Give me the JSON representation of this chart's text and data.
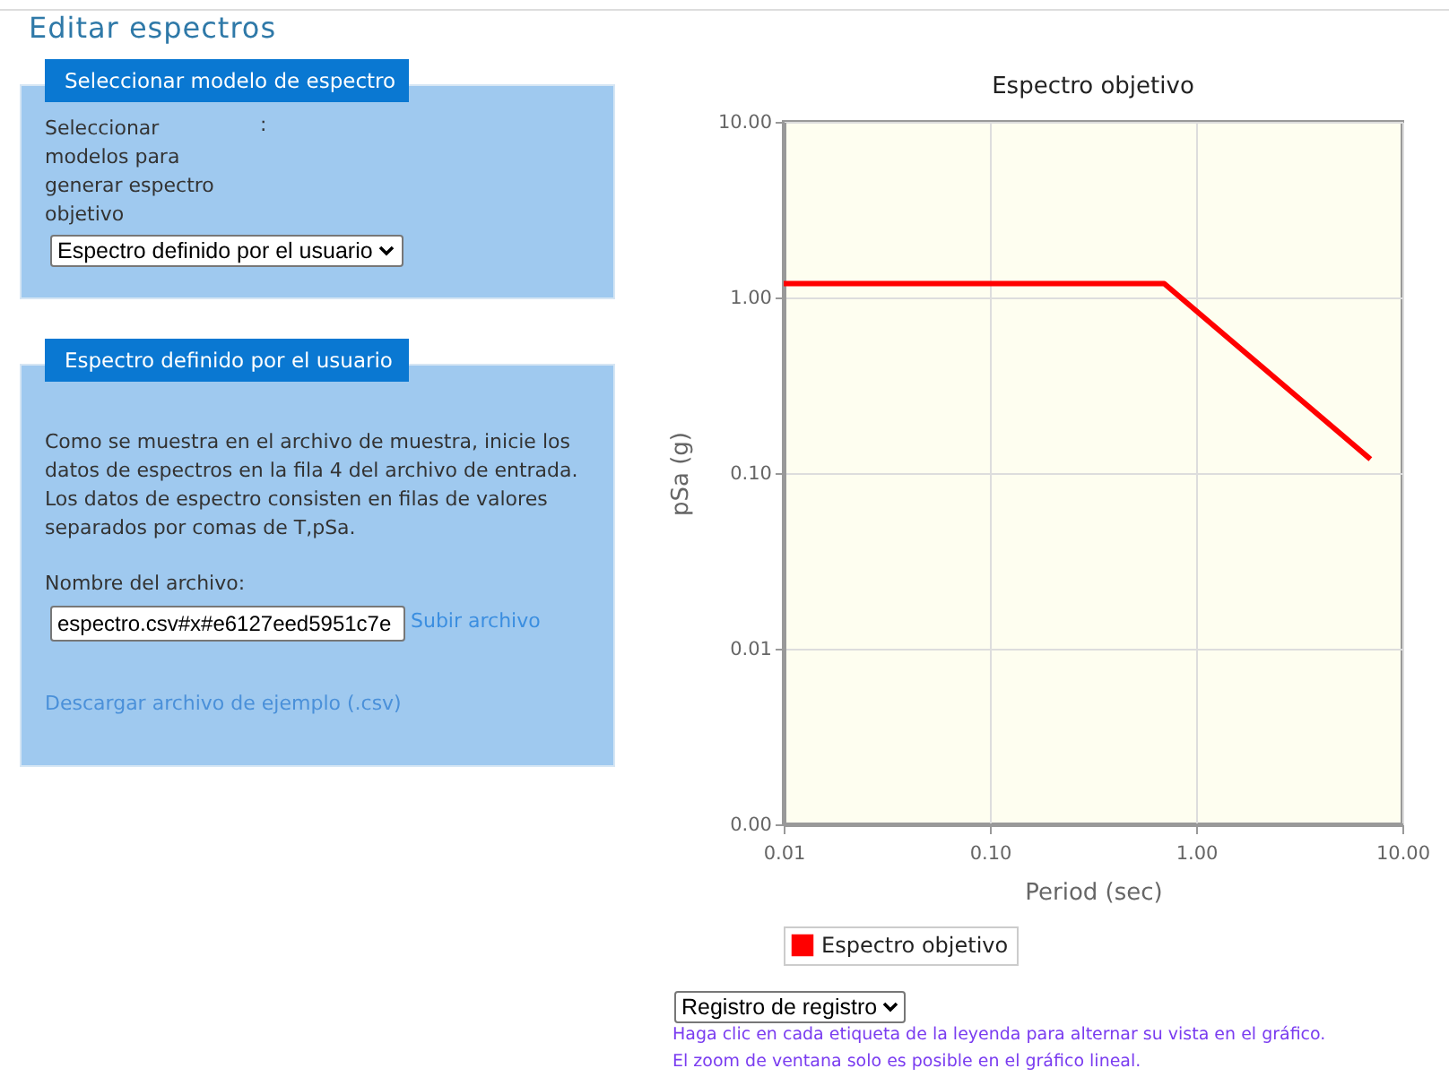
{
  "chart_data": {
    "type": "line",
    "title": "Espectro objetivo",
    "xlabel": "Period (sec)",
    "ylabel": "pSa (g)",
    "x": [
      0.01,
      0.7,
      7
    ],
    "series": [
      {
        "name": "Espectro objetivo",
        "color": "#ff0000",
        "values": [
          1.2,
          1.2,
          0.12
        ]
      }
    ],
    "log": "xy",
    "grid": true,
    "legend": "bottom",
    "xlim": [
      0.01,
      10
    ],
    "ylim": [
      0.001,
      10
    ],
    "xticks": [
      {
        "value": 0.01,
        "label": "0.01"
      },
      {
        "value": 0.1,
        "label": "0.10"
      },
      {
        "value": 1,
        "label": "1.00"
      },
      {
        "value": 10,
        "label": "10.00"
      }
    ],
    "yticks": [
      {
        "value": 0.001,
        "label": "0.00"
      },
      {
        "value": 0.01,
        "label": "0.01"
      },
      {
        "value": 0.1,
        "label": "0.10"
      },
      {
        "value": 1,
        "label": "1.00"
      },
      {
        "value": 10,
        "label": "10.00"
      }
    ],
    "annotations": [
      "Editar espectros",
      "Seleccionar modelo de espectro",
      "Seleccionar modelos para generar espectro objetivo",
      ":",
      "Espectro definido por el usuario",
      "Espectro definido por el usuario",
      "Como se muestra en el archivo de muestra, inicie los datos de espectros en la fila 4 del archivo de entrada. Los datos de espectro consisten en filas de valores separados por comas de T,pSa.",
      "Nombre del archivo:",
      "espectro.csv#x#e6127eed5951c7e",
      "Subir archivo",
      "Descargar archivo de ejemplo (.csv)",
      "Registro de registro",
      "Haga clic en cada etiqueta de la leyenda para alternar su vista en el gráfico.",
      "El zoom de ventana solo es posible en el gráfico lineal."
    ]
  }
}
